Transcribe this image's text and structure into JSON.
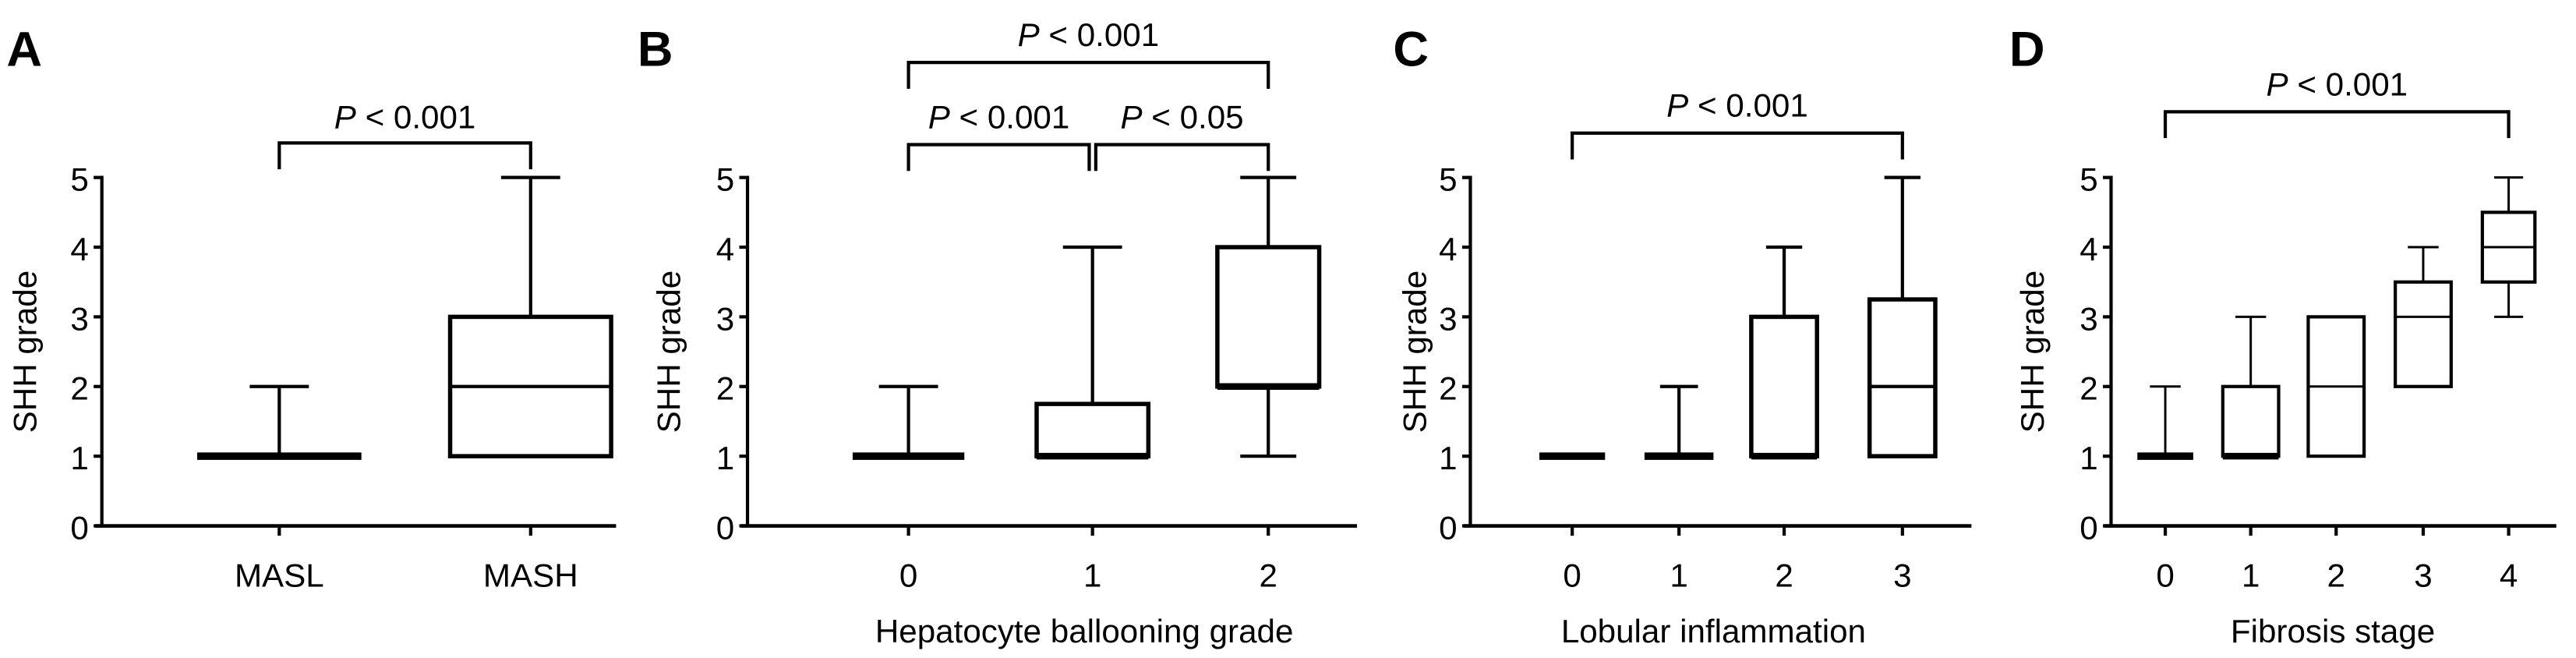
{
  "chart_data": [
    {
      "type": "box",
      "panel_label": "A",
      "ylabel": "SHH grade",
      "xlabel": "",
      "ylim": [
        0,
        5
      ],
      "yticks": [
        0,
        1,
        2,
        3,
        4,
        5
      ],
      "categories": [
        "MASL",
        "MASH"
      ],
      "boxes": [
        {
          "min": 1,
          "q1": 1,
          "median": 1,
          "q3": 1,
          "max": 2
        },
        {
          "min": 1,
          "q1": 1,
          "median": 2,
          "q3": 3,
          "max": 5
        }
      ],
      "annotations": [
        {
          "from": "MASL",
          "to": "MASH",
          "text": "P < 0.001"
        }
      ]
    },
    {
      "type": "box",
      "panel_label": "B",
      "ylabel": "SHH grade",
      "xlabel": "Hepatocyte ballooning grade",
      "ylim": [
        0,
        5
      ],
      "yticks": [
        0,
        1,
        2,
        3,
        4,
        5
      ],
      "categories": [
        "0",
        "1",
        "2"
      ],
      "boxes": [
        {
          "min": 1,
          "q1": 1,
          "median": 1,
          "q3": 1,
          "max": 2
        },
        {
          "min": 1,
          "q1": 1,
          "median": 1,
          "q3": 1.75,
          "max": 4
        },
        {
          "min": 1,
          "q1": 2,
          "median": 2,
          "q3": 4,
          "max": 5
        }
      ],
      "annotations": [
        {
          "from": "0",
          "to": "2",
          "text": "P < 0.001",
          "level": 2
        },
        {
          "from": "0",
          "to": "1",
          "text": "P < 0.001",
          "level": 1
        },
        {
          "from": "1",
          "to": "2",
          "text": "P < 0.05",
          "level": 1
        }
      ]
    },
    {
      "type": "box",
      "panel_label": "C",
      "ylabel": "SHH grade",
      "xlabel": "Lobular inflammation",
      "ylim": [
        0,
        5
      ],
      "yticks": [
        0,
        1,
        2,
        3,
        4,
        5
      ],
      "categories": [
        "0",
        "1",
        "2",
        "3"
      ],
      "boxes": [
        {
          "min": 1,
          "q1": 1,
          "median": 1,
          "q3": 1,
          "max": 1
        },
        {
          "min": 1,
          "q1": 1,
          "median": 1,
          "q3": 1,
          "max": 2
        },
        {
          "min": 1,
          "q1": 1,
          "median": 1,
          "q3": 3,
          "max": 4
        },
        {
          "min": 1,
          "q1": 1,
          "median": 2,
          "q3": 3.25,
          "max": 5
        }
      ],
      "annotations": [
        {
          "from": "0",
          "to": "3",
          "text": "P < 0.001"
        }
      ]
    },
    {
      "type": "box",
      "panel_label": "D",
      "ylabel": "SHH grade",
      "xlabel": "Fibrosis stage",
      "ylim": [
        0,
        5
      ],
      "yticks": [
        0,
        1,
        2,
        3,
        4,
        5
      ],
      "categories": [
        "0",
        "1",
        "2",
        "3",
        "4"
      ],
      "boxes": [
        {
          "min": 1,
          "q1": 1,
          "median": 1,
          "q3": 1,
          "max": 2
        },
        {
          "min": 1,
          "q1": 1,
          "median": 1,
          "q3": 2,
          "max": 3
        },
        {
          "min": 1,
          "q1": 1,
          "median": 2,
          "q3": 3,
          "max": 3
        },
        {
          "min": 2,
          "q1": 2,
          "median": 3,
          "q3": 3.5,
          "max": 4
        },
        {
          "min": 3,
          "q1": 3.5,
          "median": 4,
          "q3": 4.5,
          "max": 5
        }
      ],
      "annotations": [
        {
          "from": "0",
          "to": "4",
          "text": "P < 0.001"
        }
      ]
    }
  ]
}
